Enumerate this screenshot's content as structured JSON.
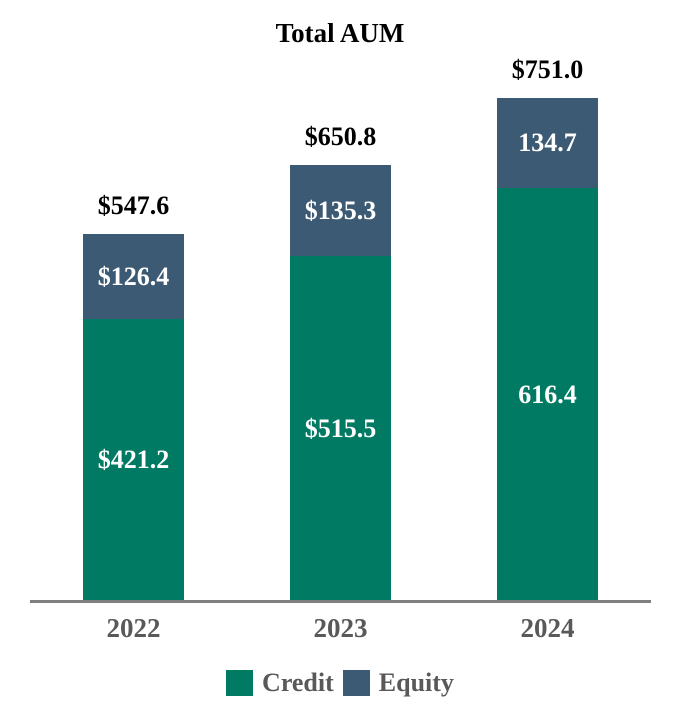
{
  "chart_data": {
    "type": "bar",
    "stacked": true,
    "title": "Total AUM",
    "categories": [
      "2022",
      "2023",
      "2024"
    ],
    "series": [
      {
        "name": "Credit",
        "color": "#007a63",
        "values": [
          421.2,
          515.5,
          616.4
        ],
        "labels": [
          "$421.2",
          "$515.5",
          "616.4"
        ]
      },
      {
        "name": "Equity",
        "color": "#3d5a75",
        "values": [
          126.4,
          135.3,
          134.7
        ],
        "labels": [
          "$126.4",
          "$135.3",
          "134.7"
        ]
      }
    ],
    "totals": [
      547.6,
      650.8,
      751.0
    ],
    "total_labels": [
      "$547.6",
      "$650.8",
      "$751.0"
    ],
    "legend_position": "bottom",
    "legend_entries": [
      "Credit",
      "Equity"
    ],
    "axis": "x-axis only, no gridlines, no y-axis",
    "ylim": [
      0,
      800
    ],
    "axis_line_color": "#7f7f7f",
    "category_label_color": "#595959",
    "pixels_per_unit": 0.67
  }
}
